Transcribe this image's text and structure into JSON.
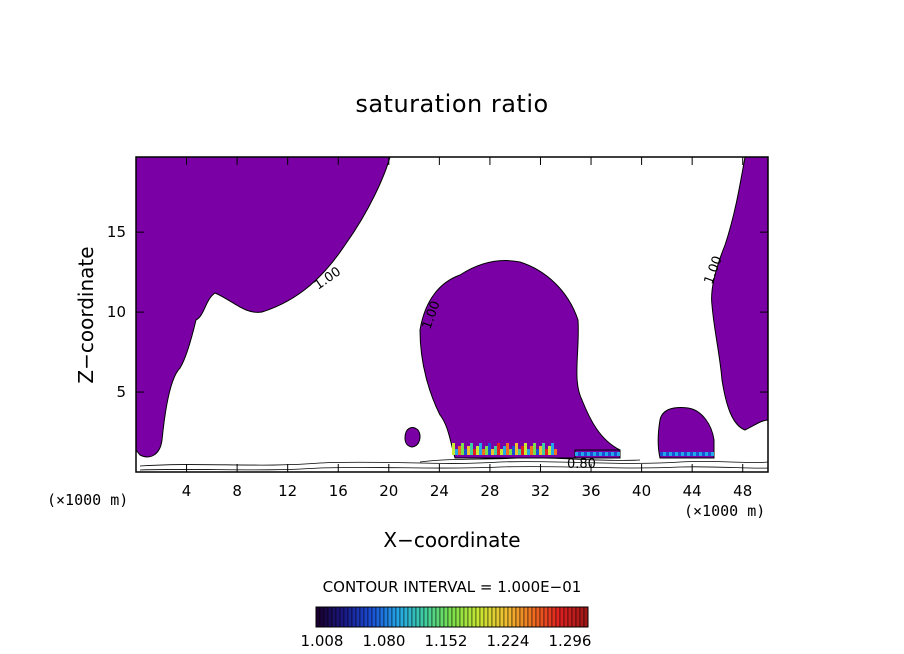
{
  "chart_data": {
    "type": "heatmap",
    "title": "saturation ratio",
    "xlabel": "X−coordinate",
    "ylabel": "Z−coordinate",
    "x_unit": "(×1000 m)",
    "y_unit": "(×1000 m)",
    "xlim": [
      0,
      50
    ],
    "ylim": [
      0,
      19.7
    ],
    "x_ticks": [
      4,
      8,
      12,
      16,
      20,
      24,
      28,
      32,
      36,
      40,
      44,
      48
    ],
    "y_ticks": [
      5,
      10,
      15
    ],
    "contour_interval": "CONTOUR INTERVAL = 1.000E−01",
    "contour_labels": [
      {
        "text": "1.00",
        "x": 15.5,
        "z": 12.3
      },
      {
        "text": "1.00",
        "x": 23.2,
        "z": 10.0
      },
      {
        "text": "1.00",
        "x": 45.5,
        "z": 12.8
      },
      {
        "text": "0.80",
        "x": 35.0,
        "z": 0.6
      }
    ],
    "fill_color": "#7a00a6",
    "colorbar": {
      "ticks": [
        "1.008",
        "1.080",
        "1.152",
        "1.224",
        "1.296"
      ],
      "colors": [
        "#1a0030",
        "#1a1a8a",
        "#1a4fd8",
        "#23a7e8",
        "#3fcfa0",
        "#7be04a",
        "#c8e832",
        "#f0c030",
        "#f07020",
        "#e02020",
        "#a01818"
      ]
    }
  }
}
